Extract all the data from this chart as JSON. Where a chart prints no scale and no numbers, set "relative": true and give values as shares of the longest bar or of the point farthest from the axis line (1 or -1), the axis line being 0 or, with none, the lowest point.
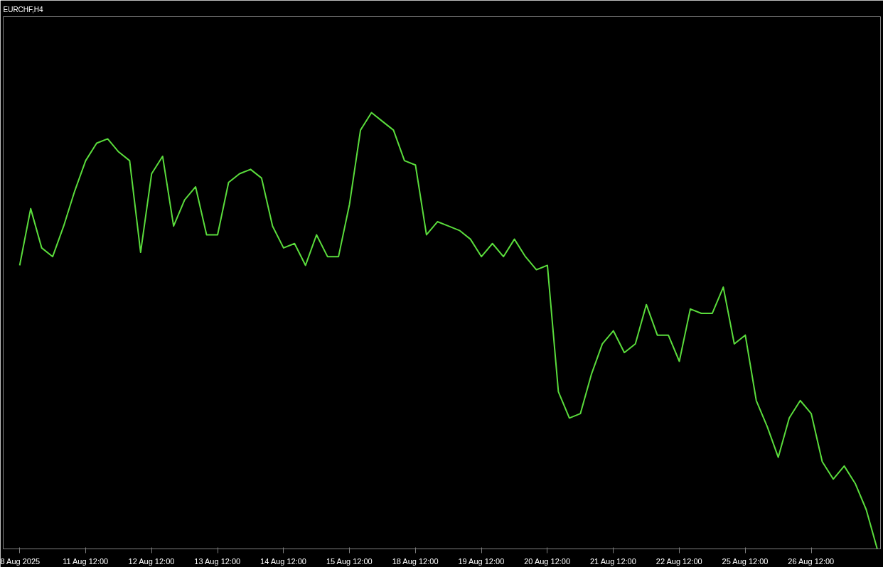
{
  "chart_data": {
    "type": "line",
    "title": "EURCHF,H4",
    "relative": true,
    "color": "#5adc3c",
    "line_style": "solid",
    "categories": [
      "8 Aug 2025",
      null,
      null,
      null,
      null,
      null,
      "11 Aug 12:00",
      null,
      null,
      null,
      null,
      null,
      "12 Aug 12:00",
      null,
      null,
      null,
      null,
      null,
      "13 Aug 12:00",
      null,
      null,
      null,
      null,
      null,
      "14 Aug 12:00",
      null,
      null,
      null,
      null,
      null,
      "15 Aug 12:00",
      null,
      null,
      null,
      null,
      null,
      "18 Aug 12:00",
      null,
      null,
      null,
      null,
      null,
      "19 Aug 12:00",
      null,
      null,
      null,
      null,
      null,
      "20 Aug 12:00",
      null,
      null,
      null,
      null,
      null,
      "21 Aug 12:00",
      null,
      null,
      null,
      null,
      null,
      "22 Aug 12:00",
      null,
      null,
      null,
      null,
      null,
      "25 Aug 12:00",
      null,
      null,
      null,
      null,
      null,
      "26 Aug 12:00",
      null,
      null,
      null,
      null,
      null,
      null
    ],
    "values": [
      0.65,
      0.78,
      0.69,
      0.67,
      0.74,
      0.82,
      0.89,
      0.93,
      0.94,
      0.91,
      0.89,
      0.68,
      0.86,
      0.9,
      0.74,
      0.8,
      0.83,
      0.72,
      0.72,
      0.84,
      0.86,
      0.87,
      0.85,
      0.74,
      0.69,
      0.7,
      0.65,
      0.72,
      0.67,
      0.67,
      0.79,
      0.96,
      1.0,
      0.98,
      0.96,
      0.89,
      0.88,
      0.72,
      0.75,
      0.74,
      0.73,
      0.71,
      0.67,
      0.7,
      0.67,
      0.71,
      0.67,
      0.64,
      0.65,
      0.36,
      0.3,
      0.31,
      0.4,
      0.47,
      0.5,
      0.45,
      0.47,
      0.56,
      0.49,
      0.49,
      0.43,
      0.55,
      0.54,
      0.54,
      0.6,
      0.47,
      0.49,
      0.34,
      0.28,
      0.21,
      0.3,
      0.34,
      0.31,
      0.2,
      0.16,
      0.19,
      0.15,
      0.09,
      0.0
    ]
  }
}
